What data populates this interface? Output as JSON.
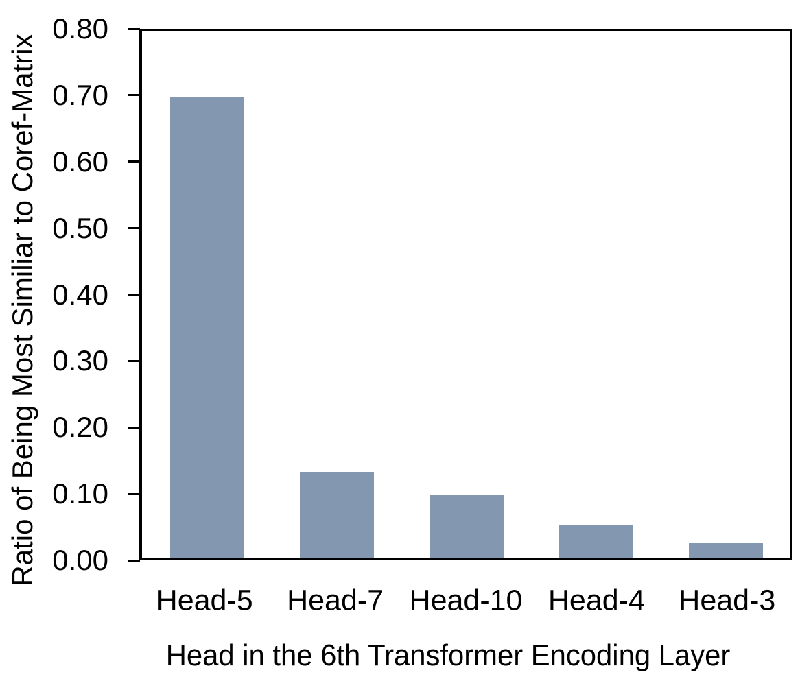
{
  "chart_data": {
    "type": "bar",
    "categories": [
      "Head-5",
      "Head-7",
      "Head-10",
      "Head-4",
      "Head-3"
    ],
    "values": [
      0.7,
      0.13,
      0.096,
      0.049,
      0.022
    ],
    "title": "",
    "xlabel": "Head in the 6th Transformer Encoding Layer",
    "ylabel": "Ratio of Being Most Similiar to Coref-Matrix",
    "ylim": [
      0,
      0.8
    ],
    "ytick_step": 0.1,
    "ytick_labels": [
      "0.00",
      "0.10",
      "0.20",
      "0.30",
      "0.40",
      "0.50",
      "0.60",
      "0.70",
      "0.80"
    ],
    "bar_color": "#8497B0",
    "axis_color": "#000000",
    "grid": false,
    "legend_position": "none",
    "frame": "full-box",
    "tick_side": "left-outward"
  }
}
